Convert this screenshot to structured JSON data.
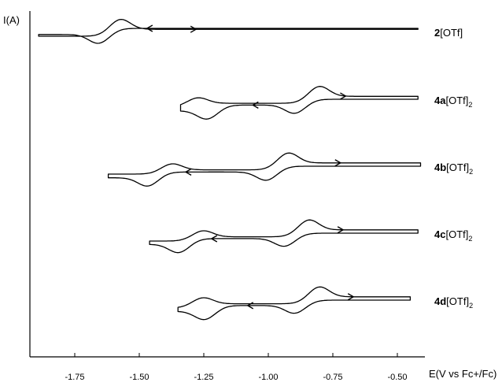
{
  "chart_data": {
    "type": "line",
    "xlabel": "E(V vs Fc+/Fc)",
    "ylabel": "I(A)",
    "xlim": [
      -1.9,
      -0.38
    ],
    "x_ticks": [
      "-1.75",
      "-1.50",
      "-1.25",
      "-1.00",
      "-0.75",
      "-0.50"
    ],
    "x_tick_values": [
      -1.75,
      -1.5,
      -1.25,
      -1.0,
      -0.75,
      -0.5
    ],
    "y_ticks": "none",
    "grid": false,
    "legend": "none (series labels at right)",
    "series": [
      {
        "name_parts": [
          "2",
          "[OTf]",
          ""
        ],
        "forward_peaks_oxidation": [
          {
            "E": -1.58,
            "di": 0.9
          }
        ],
        "reverse_peaks_reduction": [
          {
            "E": -1.65,
            "di": 0.8
          }
        ],
        "e_start": -1.89,
        "e_end": -0.42,
        "loop_level": 0.0,
        "half_width": 0.4,
        "arrows": [
          {
            "E": -1.28,
            "branch": "upper",
            "dir": "right"
          },
          {
            "E": -1.47,
            "branch": "lower",
            "dir": "left"
          }
        ]
      },
      {
        "name_parts": [
          "4a",
          "[OTf]",
          "2"
        ],
        "forward_peaks_oxidation": [
          {
            "E": -1.28,
            "di": 0.5
          },
          {
            "E": -0.81,
            "di": 0.9
          }
        ],
        "reverse_peaks_reduction": [
          {
            "E": -1.23,
            "di": 0.75
          },
          {
            "E": -0.89,
            "di": 0.75
          }
        ],
        "e_start": -1.34,
        "e_end": -0.42,
        "loop_level": 0.0,
        "half_width": 0.4,
        "arrows": [
          {
            "E": -0.7,
            "branch": "upper",
            "dir": "right"
          },
          {
            "E": -1.06,
            "branch": "lower",
            "dir": "left"
          }
        ]
      },
      {
        "name_parts": [
          "4b",
          "[OTf]",
          "2"
        ],
        "forward_peaks_oxidation": [
          {
            "E": -1.38,
            "di": 0.55
          },
          {
            "E": -0.93,
            "di": 0.9
          }
        ],
        "reverse_peaks_reduction": [
          {
            "E": -1.46,
            "di": 0.75
          },
          {
            "E": -1.0,
            "di": 0.75
          }
        ],
        "e_start": -1.62,
        "e_end": -0.41,
        "loop_level": 0.0,
        "half_width": 0.4,
        "arrows": [
          {
            "E": -0.72,
            "branch": "upper",
            "dir": "right"
          },
          {
            "E": -1.32,
            "branch": "lower",
            "dir": "left"
          }
        ]
      },
      {
        "name_parts": [
          "4c",
          "[OTf]",
          "2"
        ],
        "forward_peaks_oxidation": [
          {
            "E": -1.26,
            "di": 0.55
          },
          {
            "E": -0.85,
            "di": 0.9
          }
        ],
        "reverse_peaks_reduction": [
          {
            "E": -1.34,
            "di": 0.75
          },
          {
            "E": -0.93,
            "di": 0.7
          }
        ],
        "e_start": -1.46,
        "e_end": -0.42,
        "loop_level": 0.0,
        "half_width": 0.4,
        "arrows": [
          {
            "E": -0.71,
            "branch": "upper",
            "dir": "right"
          },
          {
            "E": -1.22,
            "branch": "lower",
            "dir": "left"
          }
        ]
      },
      {
        "name_parts": [
          "4d",
          "[OTf]",
          "2"
        ],
        "forward_peaks_oxidation": [
          {
            "E": -1.26,
            "di": 0.55
          },
          {
            "E": -0.81,
            "di": 0.9
          }
        ],
        "reverse_peaks_reduction": [
          {
            "E": -1.24,
            "di": 0.75
          },
          {
            "E": -0.89,
            "di": 0.7
          }
        ],
        "e_start": -1.35,
        "e_end": -0.45,
        "loop_level": 0.0,
        "half_width": 0.4,
        "arrows": [
          {
            "E": -0.67,
            "branch": "upper",
            "dir": "right"
          },
          {
            "E": -1.08,
            "branch": "lower",
            "dir": "left"
          }
        ]
      }
    ]
  }
}
